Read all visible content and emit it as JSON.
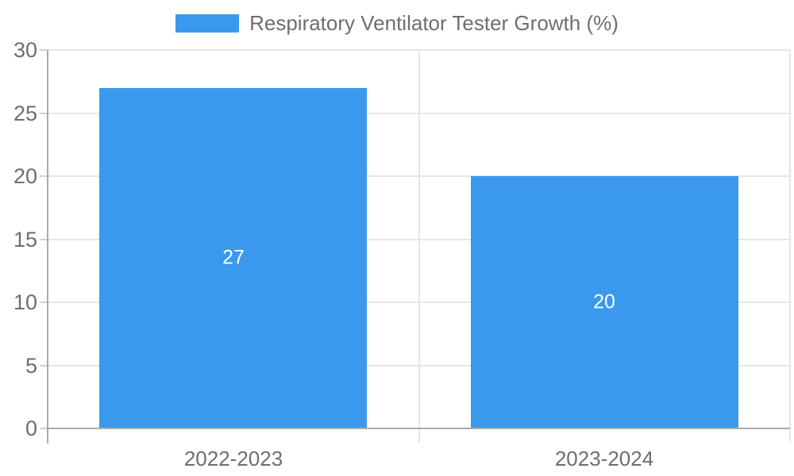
{
  "legend": {
    "label": "Respiratory Ventilator Tester Growth (%)"
  },
  "colors": {
    "bar": "#3a99ec",
    "grid": "#e6e6e6",
    "separator": "#e6e6e6",
    "axis": "#ababab",
    "tick": "#d2d2d2",
    "text": "#6e6e6e",
    "bar_label": "#ffffff",
    "background": "#ffffff"
  },
  "chart_data": {
    "type": "bar",
    "title": "Respiratory Ventilator Tester Growth (%)",
    "categories": [
      "2022-2023",
      "2023-2024"
    ],
    "series": [
      {
        "name": "Respiratory Ventilator Tester Growth (%)",
        "values": [
          27,
          20
        ]
      }
    ],
    "data_labels": [
      "27",
      "20"
    ],
    "xlabel": "",
    "ylabel": "",
    "ylim": [
      0,
      30
    ],
    "yticks": [
      0,
      5,
      10,
      15,
      20,
      25,
      30
    ],
    "grid": true,
    "legend_position": "top"
  }
}
